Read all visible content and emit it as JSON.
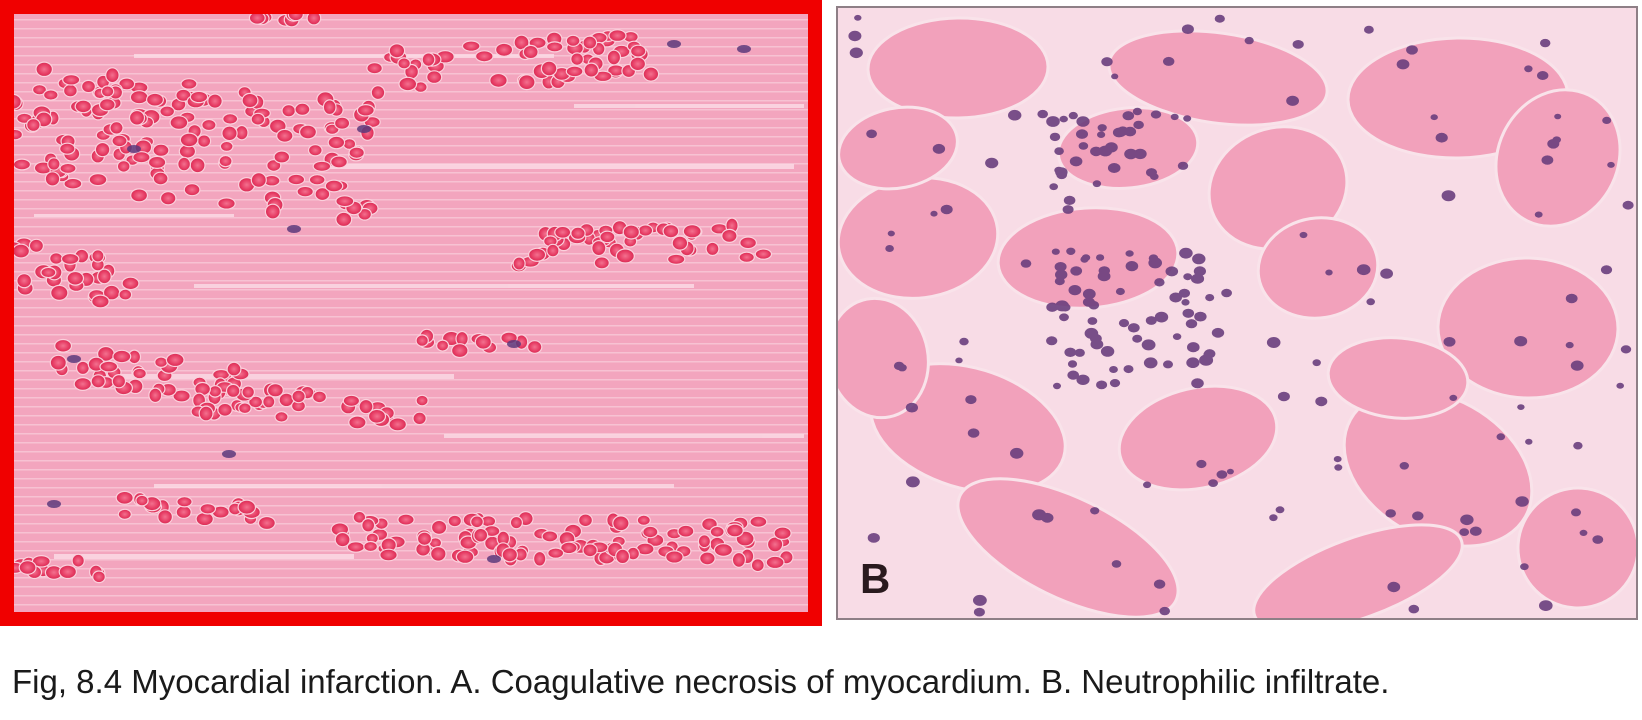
{
  "figure": {
    "caption": "Fig, 8.4 Myocardial infarction. A. Coagulative necrosis of myocardium. B. Neutrophilic infiltrate.",
    "panel_a": {
      "description": "panel-a-micrograph",
      "border_color": "#f00000"
    },
    "panel_b": {
      "label": "B",
      "description": "panel-b-micrograph"
    }
  },
  "colors": {
    "tissue_pink": "#f3a3bd",
    "rbc_red": "#e8345f",
    "nucleus_purple": "#6a3d78",
    "stroma_white": "#fbe7ee"
  }
}
